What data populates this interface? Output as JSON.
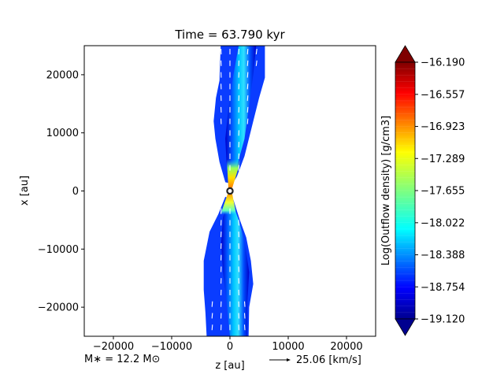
{
  "chart_data": {
    "type": "contourf",
    "title": "Time = 63.790 kyr",
    "xlabel": "z [au]",
    "ylabel": "x [au]",
    "xlim": [
      -25000,
      25000
    ],
    "ylim": [
      -25000,
      25000
    ],
    "xticks": [
      -20000,
      -10000,
      0,
      10000,
      20000
    ],
    "yticks": [
      -20000,
      -10000,
      0,
      10000,
      20000
    ],
    "xtick_labels": [
      "−20000",
      "−10000",
      "0",
      "10000",
      "20000"
    ],
    "ytick_labels": [
      "−20000",
      "−10000",
      "0",
      "10000",
      "20000"
    ],
    "colorbar": {
      "label": "Log(Outflow density) [g/cm3]",
      "min": -19.12,
      "max": -16.19,
      "colormap": "jet",
      "extend": "both",
      "ticks": [
        -16.19,
        -16.557,
        -16.923,
        -17.289,
        -17.655,
        -18.022,
        -18.388,
        -18.754,
        -19.12
      ],
      "tick_labels": [
        "−16.190",
        "−16.557",
        "−16.923",
        "−17.289",
        "−17.655",
        "−18.022",
        "−18.388",
        "−18.754",
        "−19.120"
      ]
    },
    "star": {
      "z": 0,
      "x": 0
    },
    "annotations": {
      "mass": "M∗ = 12.2 M⊙",
      "velocity_key": "25.06 [km/s]"
    },
    "outflow_lobes": [
      {
        "name": "upper",
        "boundary": [
          [
            -800,
            1500
          ],
          [
            -1800,
            5000
          ],
          [
            -2500,
            9000
          ],
          [
            -2800,
            12000
          ],
          [
            -2400,
            16000
          ],
          [
            -1800,
            19000
          ],
          [
            -1600,
            25000
          ],
          [
            6000,
            25000
          ],
          [
            6000,
            19500
          ],
          [
            5000,
            16000
          ],
          [
            4000,
            12000
          ],
          [
            3500,
            10000
          ],
          [
            2500,
            6000
          ],
          [
            1200,
            2500
          ],
          [
            400,
            1200
          ]
        ],
        "core": [
          [
            0,
            1500
          ],
          [
            -600,
            5000
          ],
          [
            -800,
            9000
          ],
          [
            -300,
            14000
          ],
          [
            600,
            20000
          ],
          [
            1500,
            25000
          ],
          [
            4500,
            25000
          ],
          [
            4000,
            20000
          ],
          [
            3200,
            14000
          ],
          [
            2500,
            9000
          ],
          [
            1400,
            5000
          ],
          [
            500,
            1800
          ]
        ]
      },
      {
        "name": "lower",
        "boundary": [
          [
            -800,
            -1000
          ],
          [
            -2000,
            -4000
          ],
          [
            -3500,
            -7000
          ],
          [
            -4500,
            -12000
          ],
          [
            -4500,
            -17000
          ],
          [
            -4200,
            -21000
          ],
          [
            -4000,
            -25000
          ],
          [
            3200,
            -25000
          ],
          [
            3300,
            -20000
          ],
          [
            4000,
            -16000
          ],
          [
            3600,
            -12000
          ],
          [
            2800,
            -8000
          ],
          [
            1700,
            -5000
          ],
          [
            600,
            -1500
          ]
        ],
        "core": [
          [
            -200,
            -1500
          ],
          [
            -1200,
            -4500
          ],
          [
            -1500,
            -9000
          ],
          [
            -1200,
            -14000
          ],
          [
            -500,
            -20000
          ],
          [
            0,
            -25000
          ],
          [
            3000,
            -25000
          ],
          [
            3000,
            -19000
          ],
          [
            3300,
            -14000
          ],
          [
            2600,
            -9000
          ],
          [
            1500,
            -5000
          ],
          [
            400,
            -2000
          ]
        ]
      }
    ]
  }
}
